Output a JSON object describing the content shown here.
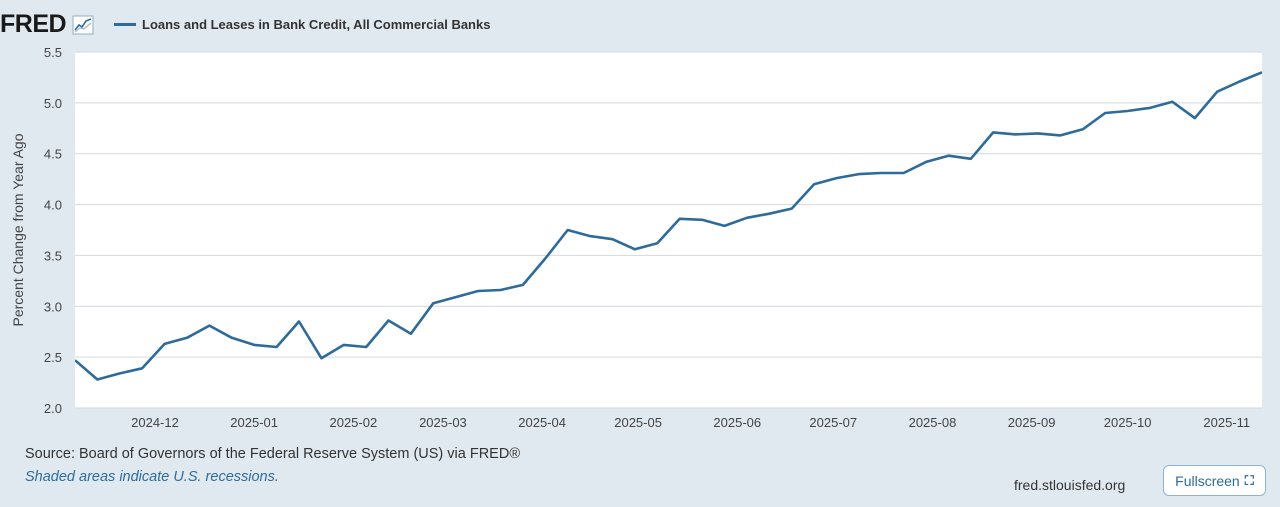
{
  "brand": {
    "logo": "FRED",
    "graph_icon": "line-chart-icon"
  },
  "chart_data": {
    "type": "line",
    "title": "",
    "legend": "top-left",
    "series": [
      {
        "name": "Loans and Leases in Bank Credit, All Commercial Banks",
        "color": "#2f6b9a",
        "dates": [
          "2024-11-06",
          "2024-11-13",
          "2024-11-20",
          "2024-11-27",
          "2024-12-04",
          "2024-12-11",
          "2024-12-18",
          "2024-12-25",
          "2025-01-01",
          "2025-01-08",
          "2025-01-15",
          "2025-01-22",
          "2025-01-29",
          "2025-02-05",
          "2025-02-12",
          "2025-02-19",
          "2025-02-26",
          "2025-03-05",
          "2025-03-12",
          "2025-03-19",
          "2025-03-26",
          "2025-04-02",
          "2025-04-09",
          "2025-04-16",
          "2025-04-23",
          "2025-04-30",
          "2025-05-07",
          "2025-05-14",
          "2025-05-21",
          "2025-05-28",
          "2025-06-04",
          "2025-06-11",
          "2025-06-18",
          "2025-06-25",
          "2025-07-02",
          "2025-07-09",
          "2025-07-16",
          "2025-07-23",
          "2025-07-30",
          "2025-08-06",
          "2025-08-13",
          "2025-08-20",
          "2025-08-27",
          "2025-09-03",
          "2025-09-10",
          "2025-09-17",
          "2025-09-24",
          "2025-10-01",
          "2025-10-08",
          "2025-10-15",
          "2025-10-22",
          "2025-10-29",
          "2025-11-05",
          "2025-11-12"
        ],
        "values": [
          2.47,
          2.28,
          2.34,
          2.39,
          2.63,
          2.69,
          2.81,
          2.69,
          2.62,
          2.6,
          2.85,
          2.49,
          2.62,
          2.6,
          2.86,
          2.73,
          3.03,
          3.09,
          3.15,
          3.16,
          3.21,
          3.47,
          3.75,
          3.69,
          3.66,
          3.56,
          3.62,
          3.86,
          3.85,
          3.79,
          3.87,
          3.91,
          3.96,
          4.2,
          4.26,
          4.3,
          4.31,
          4.31,
          4.42,
          4.48,
          4.45,
          4.71,
          4.69,
          4.7,
          4.68,
          4.74,
          4.9,
          4.92,
          4.95,
          5.01,
          4.85,
          5.11,
          5.21,
          5.3
        ]
      }
    ],
    "x_range": [
      "2024-11-06",
      "2025-11-12"
    ],
    "x_ticks": [
      "2024-12",
      "2025-01",
      "2025-02",
      "2025-03",
      "2025-04",
      "2025-05",
      "2025-06",
      "2025-07",
      "2025-08",
      "2025-09",
      "2025-10",
      "2025-11"
    ],
    "ylabel": "Percent Change from Year Ago",
    "ylim": [
      2.0,
      5.5
    ],
    "yticks": [
      "2.0",
      "2.5",
      "3.0",
      "3.5",
      "4.0",
      "4.5",
      "5.0",
      "5.5"
    ],
    "grid": true
  },
  "footer": {
    "source": "Source: Board of Governors of the Federal Reserve System (US) via FRED®",
    "note": "Shaded areas indicate U.S. recessions.",
    "url": "fred.stlouisfed.org",
    "fullscreen_label": "Fullscreen",
    "fullscreen_icon": "⛶"
  }
}
